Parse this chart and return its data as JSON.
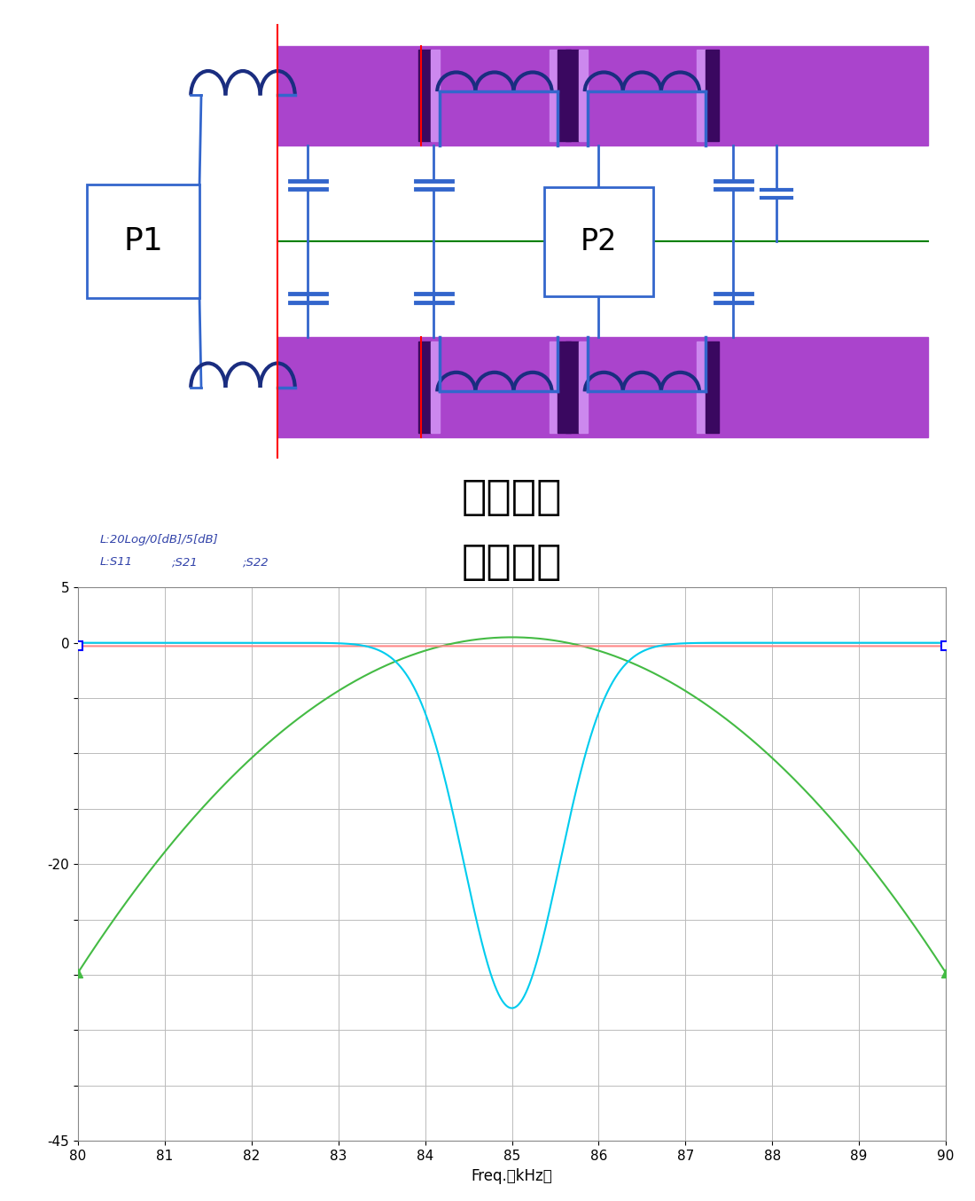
{
  "title_line1": "回路構成",
  "title_line2": "全輪給電",
  "xlabel": "Freq.（kHz）",
  "ylabel_text": "L:20Log/0[dB]/5[dB]",
  "xmin": 80,
  "xmax": 90,
  "ymin": -45,
  "ymax": 5,
  "yticks": [
    -45,
    -40,
    -35,
    -30,
    -25,
    -20,
    -15,
    -10,
    -5,
    0,
    5
  ],
  "xticks": [
    80,
    81,
    82,
    83,
    84,
    85,
    86,
    87,
    88,
    89,
    90
  ],
  "grid_color": "#bbbbbb",
  "background_color": "#ffffff",
  "s11_color": "#ff8888",
  "s21_color": "#44bb44",
  "s22_color": "#00ccee",
  "purple_color": "#aa44cc",
  "blue_wire": "#3366cc",
  "blue_dark": "#1a2d80",
  "p1_label": "P1",
  "p2_label": "P2",
  "title_fontsize": 34,
  "axis_label_fontsize": 11,
  "legend_fontsize": 9.5,
  "tick_fontsize": 11
}
